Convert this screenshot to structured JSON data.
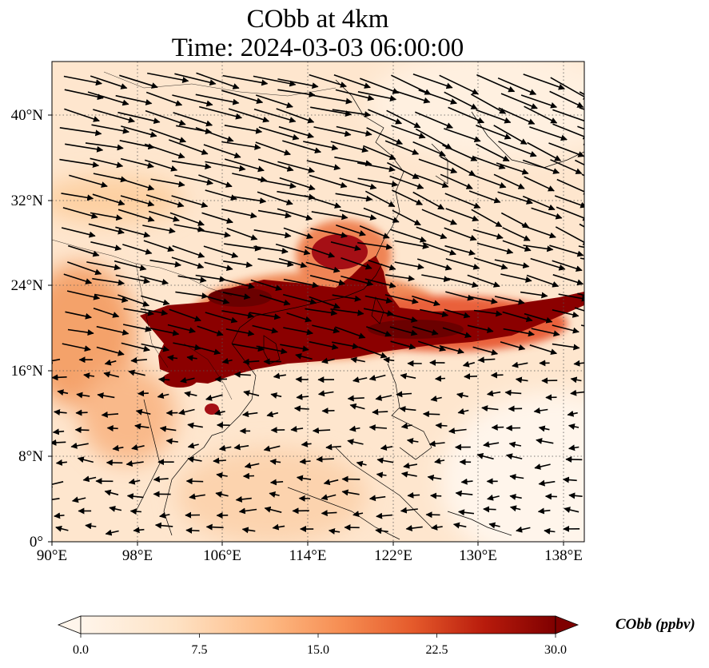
{
  "title": {
    "line1": "CObb at 4km",
    "line2": "Time: 2024-03-03 06:00:00"
  },
  "map": {
    "projection": "PlateCarree",
    "lon_range": [
      90,
      140
    ],
    "lat_range": [
      0,
      45
    ],
    "gridlines": "dotted",
    "x_ticks": [
      "90°E",
      "98°E",
      "106°E",
      "114°E",
      "122°E",
      "130°E",
      "138°E"
    ],
    "y_ticks": [
      "0°",
      "8°N",
      "16°N",
      "24°N",
      "32°N",
      "40°N"
    ],
    "field": "COBB concentration filled contours",
    "overlay": "wind vectors (quiver)",
    "colors": {
      "low": "#fff5eb",
      "mid": "#fdae6b",
      "high": "#d94801",
      "max": "#7f0000"
    },
    "plume_description": "dense CO biomass-burning plume over Indochina, South China Sea and across the western Pacific near 18-24°N; secondary patches over southern China",
    "wind_description": "strong westerlies north of ~20°N, weak easterly/north-easterly flow south of ~16°N"
  },
  "colorbar": {
    "label": "CObb (ppbv)",
    "ticks": [
      "0.0",
      "7.5",
      "15.0",
      "22.5",
      "30.0"
    ],
    "min": 0,
    "max": 30,
    "extend": "both",
    "colormap": "OrRd"
  }
}
